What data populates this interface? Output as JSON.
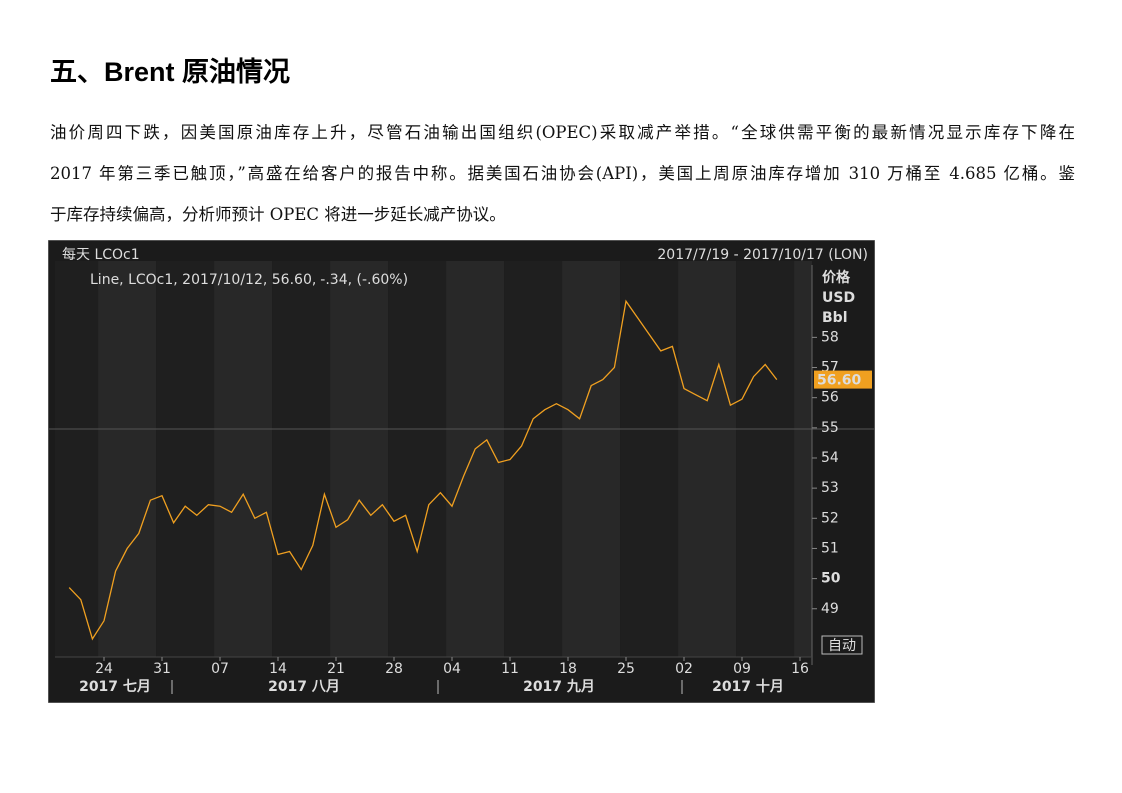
{
  "header": {
    "title": "五、Brent 原油情况"
  },
  "paragraph": {
    "lines": [
      "油价周四下跌，因美国原油库存上升，尽管石油输出国组织(OPEC)采取减产举措。“全球供需平衡的最新情况显示库存下降在",
      "2017 年第三季已触顶，”高盛在给客户的报告中称。据美国石油协会(API)，美国上周原油库存增加 310 万桶至 4.685 亿桶。鉴",
      "于库存持续偏高，分析师预计 OPEC 将进一步延长减产协议。"
    ]
  },
  "chart_data": {
    "type": "line",
    "title": "每天 LCOc1",
    "subtitle": "2017/7/19 - 2017/10/17 (LON)",
    "legend": [
      "Line, LCOc1, 2017/10/12, 56.60,",
      "-.34, (-.60%)"
    ],
    "legend_colors": [
      "#f0a020",
      "#33dd33"
    ],
    "y_axis_label": [
      "价格",
      "USD",
      "Bbl"
    ],
    "button": "自动",
    "categories": [
      null,
      null,
      null,
      "24",
      null,
      null,
      null,
      null,
      "31",
      null,
      null,
      null,
      null,
      "07",
      null,
      null,
      null,
      null,
      "14",
      null,
      null,
      null,
      null,
      "21",
      null,
      null,
      null,
      null,
      "28",
      null,
      null,
      null,
      null,
      "04",
      null,
      null,
      null,
      null,
      "11",
      null,
      null,
      null,
      null,
      "18",
      null,
      null,
      null,
      null,
      "25",
      null,
      null,
      null,
      null,
      "02",
      null,
      null,
      null,
      null,
      "09",
      null,
      null,
      null,
      null,
      "16"
    ],
    "month_labels": [
      "2017 七月",
      "2017 八月",
      "2017 九月",
      "2017 十月"
    ],
    "series": [
      {
        "name": "LCOc1",
        "color": "#f0a020",
        "values": [
          49.7,
          49.3,
          48.0,
          48.6,
          50.25,
          51.0,
          51.5,
          52.6,
          52.75,
          51.85,
          52.4,
          52.1,
          52.45,
          52.4,
          52.2,
          52.8,
          52.0,
          52.2,
          50.8,
          50.9,
          50.3,
          51.1,
          52.8,
          51.7,
          51.95,
          52.6,
          52.1,
          52.45,
          51.9,
          52.1,
          50.9,
          52.45,
          52.85,
          52.4,
          53.4,
          54.3,
          54.6,
          53.85,
          53.95,
          54.4,
          55.3,
          55.6,
          55.8,
          55.6,
          55.3,
          56.4,
          56.6,
          57.0,
          59.2,
          58.65,
          58.1,
          57.55,
          57.7,
          56.3,
          56.1,
          55.9,
          57.1,
          55.75,
          55.95,
          56.7,
          57.1,
          56.6,
          null,
          null
        ]
      }
    ],
    "last_value_label": "56.60",
    "last_label_color": "#f0a020",
    "ylim": [
      47.4,
      60.4
    ],
    "yticks": [
      49,
      50,
      51,
      52,
      53,
      54,
      55,
      56,
      57,
      58
    ],
    "grid": false
  }
}
